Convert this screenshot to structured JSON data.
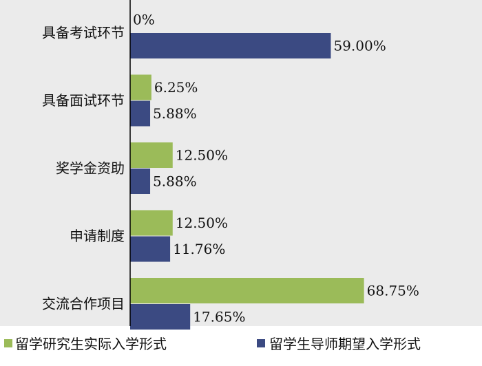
{
  "chart_data": {
    "type": "bar",
    "orientation": "horizontal",
    "categories": [
      "具备考试环节",
      "具备面试环节",
      "奖学金资助",
      "申请制度",
      "交流合作项目"
    ],
    "series": [
      {
        "name": "留学研究生实际入学形式",
        "color": "#9bbb59",
        "values": [
          0,
          6.25,
          12.5,
          12.5,
          68.75
        ],
        "labels": [
          "0%",
          "6.25%",
          "12.50%",
          "12.50%",
          "68.75%"
        ]
      },
      {
        "name": "留学生导师期望入学形式",
        "color": "#3b4a82",
        "values": [
          59.0,
          5.88,
          5.88,
          11.76,
          17.65
        ],
        "labels": [
          "59.00%",
          "5.88%",
          "5.88%",
          "11.76%",
          "17.65%"
        ]
      }
    ],
    "xlim": [
      0,
      100
    ],
    "grid": false,
    "legend_position": "bottom",
    "background": "#ebebeb"
  }
}
